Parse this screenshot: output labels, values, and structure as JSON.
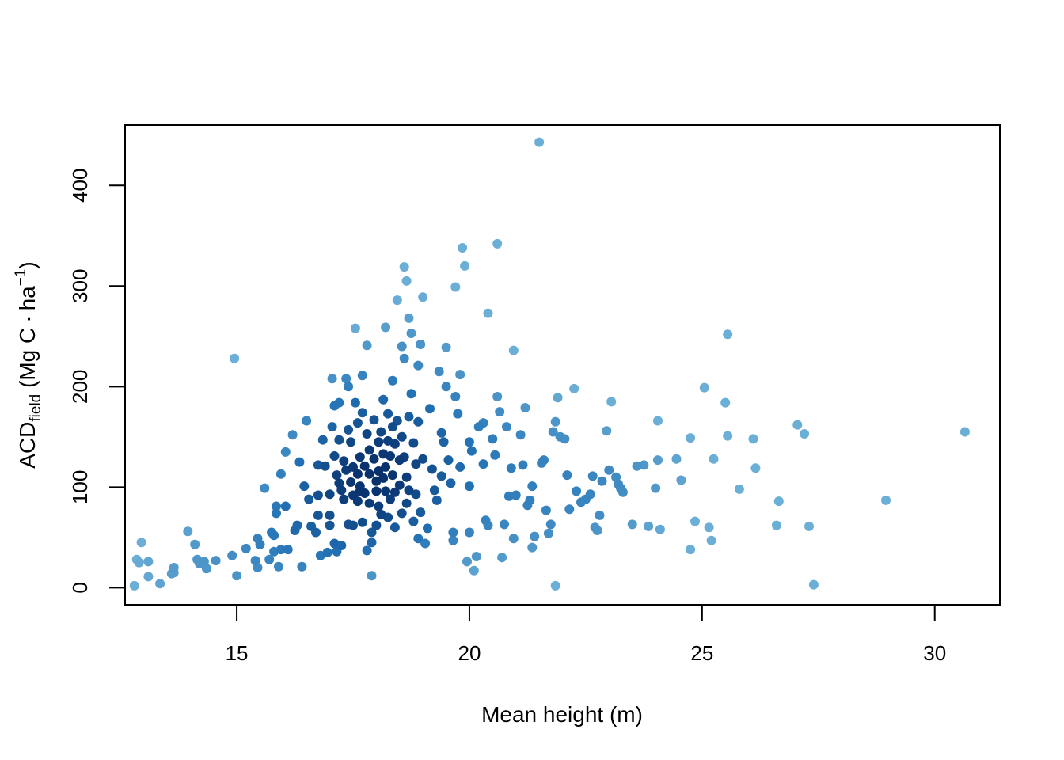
{
  "chart_data": {
    "type": "scatter",
    "title": "",
    "xlabel": "Mean height (m)",
    "ylabel": {
      "main": "ACD",
      "subscript": "field",
      "units_prefix": " (Mg C",
      "dot": "·",
      "units_unit": "ha",
      "superscript": "−1",
      "units_suffix": ")"
    },
    "xlim": [
      12.6,
      31.4
    ],
    "ylim": [
      -17,
      460
    ],
    "x_ticks": [
      15,
      20,
      25,
      30
    ],
    "y_ticks": [
      0,
      100,
      200,
      300,
      400
    ],
    "grid": false,
    "legend": "none",
    "colors": {
      "light": "#6baed6",
      "mid": "#2171b5",
      "dark": "#08306b",
      "axis": "#000000"
    },
    "points": [
      [
        12.8,
        2
      ],
      [
        12.85,
        28
      ],
      [
        12.9,
        25
      ],
      [
        12.95,
        45
      ],
      [
        13.1,
        26
      ],
      [
        13.1,
        11
      ],
      [
        13.35,
        4
      ],
      [
        13.6,
        14
      ],
      [
        13.65,
        20
      ],
      [
        13.65,
        15
      ],
      [
        13.95,
        56
      ],
      [
        14.1,
        43
      ],
      [
        14.15,
        28
      ],
      [
        14.2,
        24
      ],
      [
        14.3,
        26
      ],
      [
        14.35,
        19
      ],
      [
        14.55,
        27
      ],
      [
        14.9,
        32
      ],
      [
        14.95,
        228
      ],
      [
        15.0,
        12
      ],
      [
        15.2,
        39
      ],
      [
        15.4,
        27
      ],
      [
        15.45,
        49
      ],
      [
        15.45,
        20
      ],
      [
        15.5,
        43
      ],
      [
        15.6,
        99
      ],
      [
        15.7,
        28
      ],
      [
        15.75,
        55
      ],
      [
        15.8,
        36
      ],
      [
        15.8,
        52
      ],
      [
        15.85,
        81
      ],
      [
        15.85,
        74
      ],
      [
        15.9,
        21
      ],
      [
        15.95,
        113
      ],
      [
        15.95,
        38
      ],
      [
        16.05,
        135
      ],
      [
        16.05,
        81
      ],
      [
        16.1,
        38
      ],
      [
        16.2,
        152
      ],
      [
        16.25,
        57
      ],
      [
        16.3,
        62
      ],
      [
        16.35,
        125
      ],
      [
        16.4,
        21
      ],
      [
        16.45,
        101
      ],
      [
        16.5,
        166
      ],
      [
        16.55,
        88
      ],
      [
        16.6,
        61
      ],
      [
        16.7,
        55
      ],
      [
        16.75,
        122
      ],
      [
        16.75,
        92
      ],
      [
        16.75,
        72
      ],
      [
        16.8,
        32
      ],
      [
        16.85,
        147
      ],
      [
        16.9,
        121
      ],
      [
        16.95,
        35
      ],
      [
        17.0,
        93
      ],
      [
        17.0,
        72
      ],
      [
        17.0,
        62
      ],
      [
        17.05,
        208
      ],
      [
        17.05,
        160
      ],
      [
        17.1,
        181
      ],
      [
        17.1,
        131
      ],
      [
        17.1,
        44
      ],
      [
        17.15,
        112
      ],
      [
        17.15,
        36
      ],
      [
        17.2,
        184
      ],
      [
        17.2,
        147
      ],
      [
        17.2,
        104
      ],
      [
        17.25,
        42
      ],
      [
        17.25,
        97
      ],
      [
        17.3,
        126
      ],
      [
        17.3,
        88
      ],
      [
        17.35,
        208
      ],
      [
        17.35,
        117
      ],
      [
        17.4,
        200
      ],
      [
        17.4,
        157
      ],
      [
        17.4,
        63
      ],
      [
        17.45,
        145
      ],
      [
        17.45,
        105
      ],
      [
        17.5,
        120
      ],
      [
        17.5,
        92
      ],
      [
        17.5,
        62
      ],
      [
        17.55,
        184
      ],
      [
        17.55,
        258
      ],
      [
        17.6,
        164
      ],
      [
        17.6,
        113
      ],
      [
        17.6,
        86
      ],
      [
        17.65,
        130
      ],
      [
        17.65,
        101
      ],
      [
        17.65,
        96
      ],
      [
        17.7,
        211
      ],
      [
        17.7,
        174
      ],
      [
        17.7,
        65
      ],
      [
        17.75,
        121
      ],
      [
        17.75,
        94
      ],
      [
        17.8,
        241
      ],
      [
        17.8,
        153
      ],
      [
        17.8,
        37
      ],
      [
        17.85,
        137
      ],
      [
        17.85,
        113
      ],
      [
        17.85,
        84
      ],
      [
        17.9,
        12
      ],
      [
        17.9,
        55
      ],
      [
        17.9,
        45
      ],
      [
        17.95,
        167
      ],
      [
        17.95,
        128
      ],
      [
        18.0,
        106
      ],
      [
        18.0,
        96
      ],
      [
        18.0,
        62
      ],
      [
        18.05,
        145
      ],
      [
        18.05,
        116
      ],
      [
        18.05,
        81
      ],
      [
        18.1,
        155
      ],
      [
        18.1,
        73
      ],
      [
        18.15,
        187
      ],
      [
        18.15,
        133
      ],
      [
        18.15,
        109
      ],
      [
        18.2,
        120
      ],
      [
        18.2,
        96
      ],
      [
        18.2,
        259
      ],
      [
        18.25,
        173
      ],
      [
        18.25,
        146
      ],
      [
        18.25,
        70
      ],
      [
        18.3,
        131
      ],
      [
        18.3,
        88
      ],
      [
        18.35,
        206
      ],
      [
        18.35,
        160
      ],
      [
        18.35,
        112
      ],
      [
        18.4,
        143
      ],
      [
        18.4,
        95
      ],
      [
        18.4,
        60
      ],
      [
        18.45,
        286
      ],
      [
        18.45,
        166
      ],
      [
        18.5,
        127
      ],
      [
        18.5,
        102
      ],
      [
        18.55,
        240
      ],
      [
        18.55,
        150
      ],
      [
        18.55,
        74
      ],
      [
        18.6,
        319
      ],
      [
        18.6,
        228
      ],
      [
        18.6,
        130
      ],
      [
        18.65,
        305
      ],
      [
        18.65,
        110
      ],
      [
        18.65,
        84
      ],
      [
        18.7,
        268
      ],
      [
        18.7,
        170
      ],
      [
        18.7,
        97
      ],
      [
        18.75,
        253
      ],
      [
        18.75,
        193
      ],
      [
        18.8,
        144
      ],
      [
        18.8,
        66
      ],
      [
        18.85,
        123
      ],
      [
        18.85,
        93
      ],
      [
        18.9,
        221
      ],
      [
        18.9,
        165
      ],
      [
        18.9,
        49
      ],
      [
        18.95,
        242
      ],
      [
        18.95,
        75
      ],
      [
        19.0,
        128
      ],
      [
        19.0,
        289
      ],
      [
        19.05,
        44
      ],
      [
        19.1,
        59
      ],
      [
        19.15,
        178
      ],
      [
        19.2,
        118
      ],
      [
        19.25,
        97
      ],
      [
        19.3,
        87
      ],
      [
        19.35,
        215
      ],
      [
        19.4,
        154
      ],
      [
        19.4,
        111
      ],
      [
        19.45,
        145
      ],
      [
        19.5,
        239
      ],
      [
        19.5,
        200
      ],
      [
        19.55,
        127
      ],
      [
        19.6,
        104
      ],
      [
        19.65,
        55
      ],
      [
        19.65,
        47
      ],
      [
        19.7,
        299
      ],
      [
        19.7,
        190
      ],
      [
        19.75,
        173
      ],
      [
        19.8,
        212
      ],
      [
        19.8,
        120
      ],
      [
        19.85,
        338
      ],
      [
        19.9,
        320
      ],
      [
        19.95,
        26
      ],
      [
        20.0,
        145
      ],
      [
        20.0,
        101
      ],
      [
        20.0,
        55
      ],
      [
        20.05,
        136
      ],
      [
        20.1,
        17
      ],
      [
        20.15,
        31
      ],
      [
        20.2,
        160
      ],
      [
        20.3,
        164
      ],
      [
        20.3,
        123
      ],
      [
        20.35,
        67
      ],
      [
        20.4,
        62
      ],
      [
        20.4,
        273
      ],
      [
        20.5,
        148
      ],
      [
        20.55,
        132
      ],
      [
        20.6,
        342
      ],
      [
        20.6,
        190
      ],
      [
        20.65,
        175
      ],
      [
        20.7,
        30
      ],
      [
        20.75,
        63
      ],
      [
        20.8,
        160
      ],
      [
        20.85,
        91
      ],
      [
        20.9,
        119
      ],
      [
        20.95,
        236
      ],
      [
        20.95,
        49
      ],
      [
        21.0,
        92
      ],
      [
        21.1,
        152
      ],
      [
        21.15,
        122
      ],
      [
        21.2,
        179
      ],
      [
        21.25,
        82
      ],
      [
        21.3,
        87
      ],
      [
        21.35,
        40
      ],
      [
        21.35,
        101
      ],
      [
        21.4,
        51
      ],
      [
        21.5,
        443
      ],
      [
        21.55,
        124
      ],
      [
        21.6,
        127
      ],
      [
        21.65,
        77
      ],
      [
        21.7,
        54
      ],
      [
        21.75,
        63
      ],
      [
        21.8,
        155
      ],
      [
        21.85,
        2
      ],
      [
        21.85,
        165
      ],
      [
        21.9,
        189
      ],
      [
        21.95,
        150
      ],
      [
        22.05,
        148
      ],
      [
        22.1,
        112
      ],
      [
        22.15,
        78
      ],
      [
        22.25,
        198
      ],
      [
        22.3,
        96
      ],
      [
        22.4,
        85
      ],
      [
        22.5,
        88
      ],
      [
        22.6,
        93
      ],
      [
        22.65,
        111
      ],
      [
        22.7,
        60
      ],
      [
        22.75,
        57
      ],
      [
        22.8,
        72
      ],
      [
        22.85,
        106
      ],
      [
        22.95,
        156
      ],
      [
        23.0,
        117
      ],
      [
        23.05,
        185
      ],
      [
        23.15,
        110
      ],
      [
        23.2,
        103
      ],
      [
        23.25,
        99
      ],
      [
        23.3,
        95
      ],
      [
        23.5,
        63
      ],
      [
        23.6,
        121
      ],
      [
        23.75,
        122
      ],
      [
        23.85,
        61
      ],
      [
        24.0,
        99
      ],
      [
        24.05,
        166
      ],
      [
        24.05,
        127
      ],
      [
        24.1,
        58
      ],
      [
        24.45,
        128
      ],
      [
        24.55,
        107
      ],
      [
        24.75,
        149
      ],
      [
        24.75,
        38
      ],
      [
        24.85,
        66
      ],
      [
        25.05,
        199
      ],
      [
        25.15,
        60
      ],
      [
        25.2,
        47
      ],
      [
        25.25,
        128
      ],
      [
        25.5,
        184
      ],
      [
        25.55,
        252
      ],
      [
        25.55,
        151
      ],
      [
        25.8,
        98
      ],
      [
        26.1,
        148
      ],
      [
        26.15,
        119
      ],
      [
        26.6,
        62
      ],
      [
        26.65,
        86
      ],
      [
        27.05,
        162
      ],
      [
        27.2,
        153
      ],
      [
        27.3,
        61
      ],
      [
        27.4,
        3
      ],
      [
        28.95,
        87
      ],
      [
        30.65,
        155
      ]
    ]
  }
}
